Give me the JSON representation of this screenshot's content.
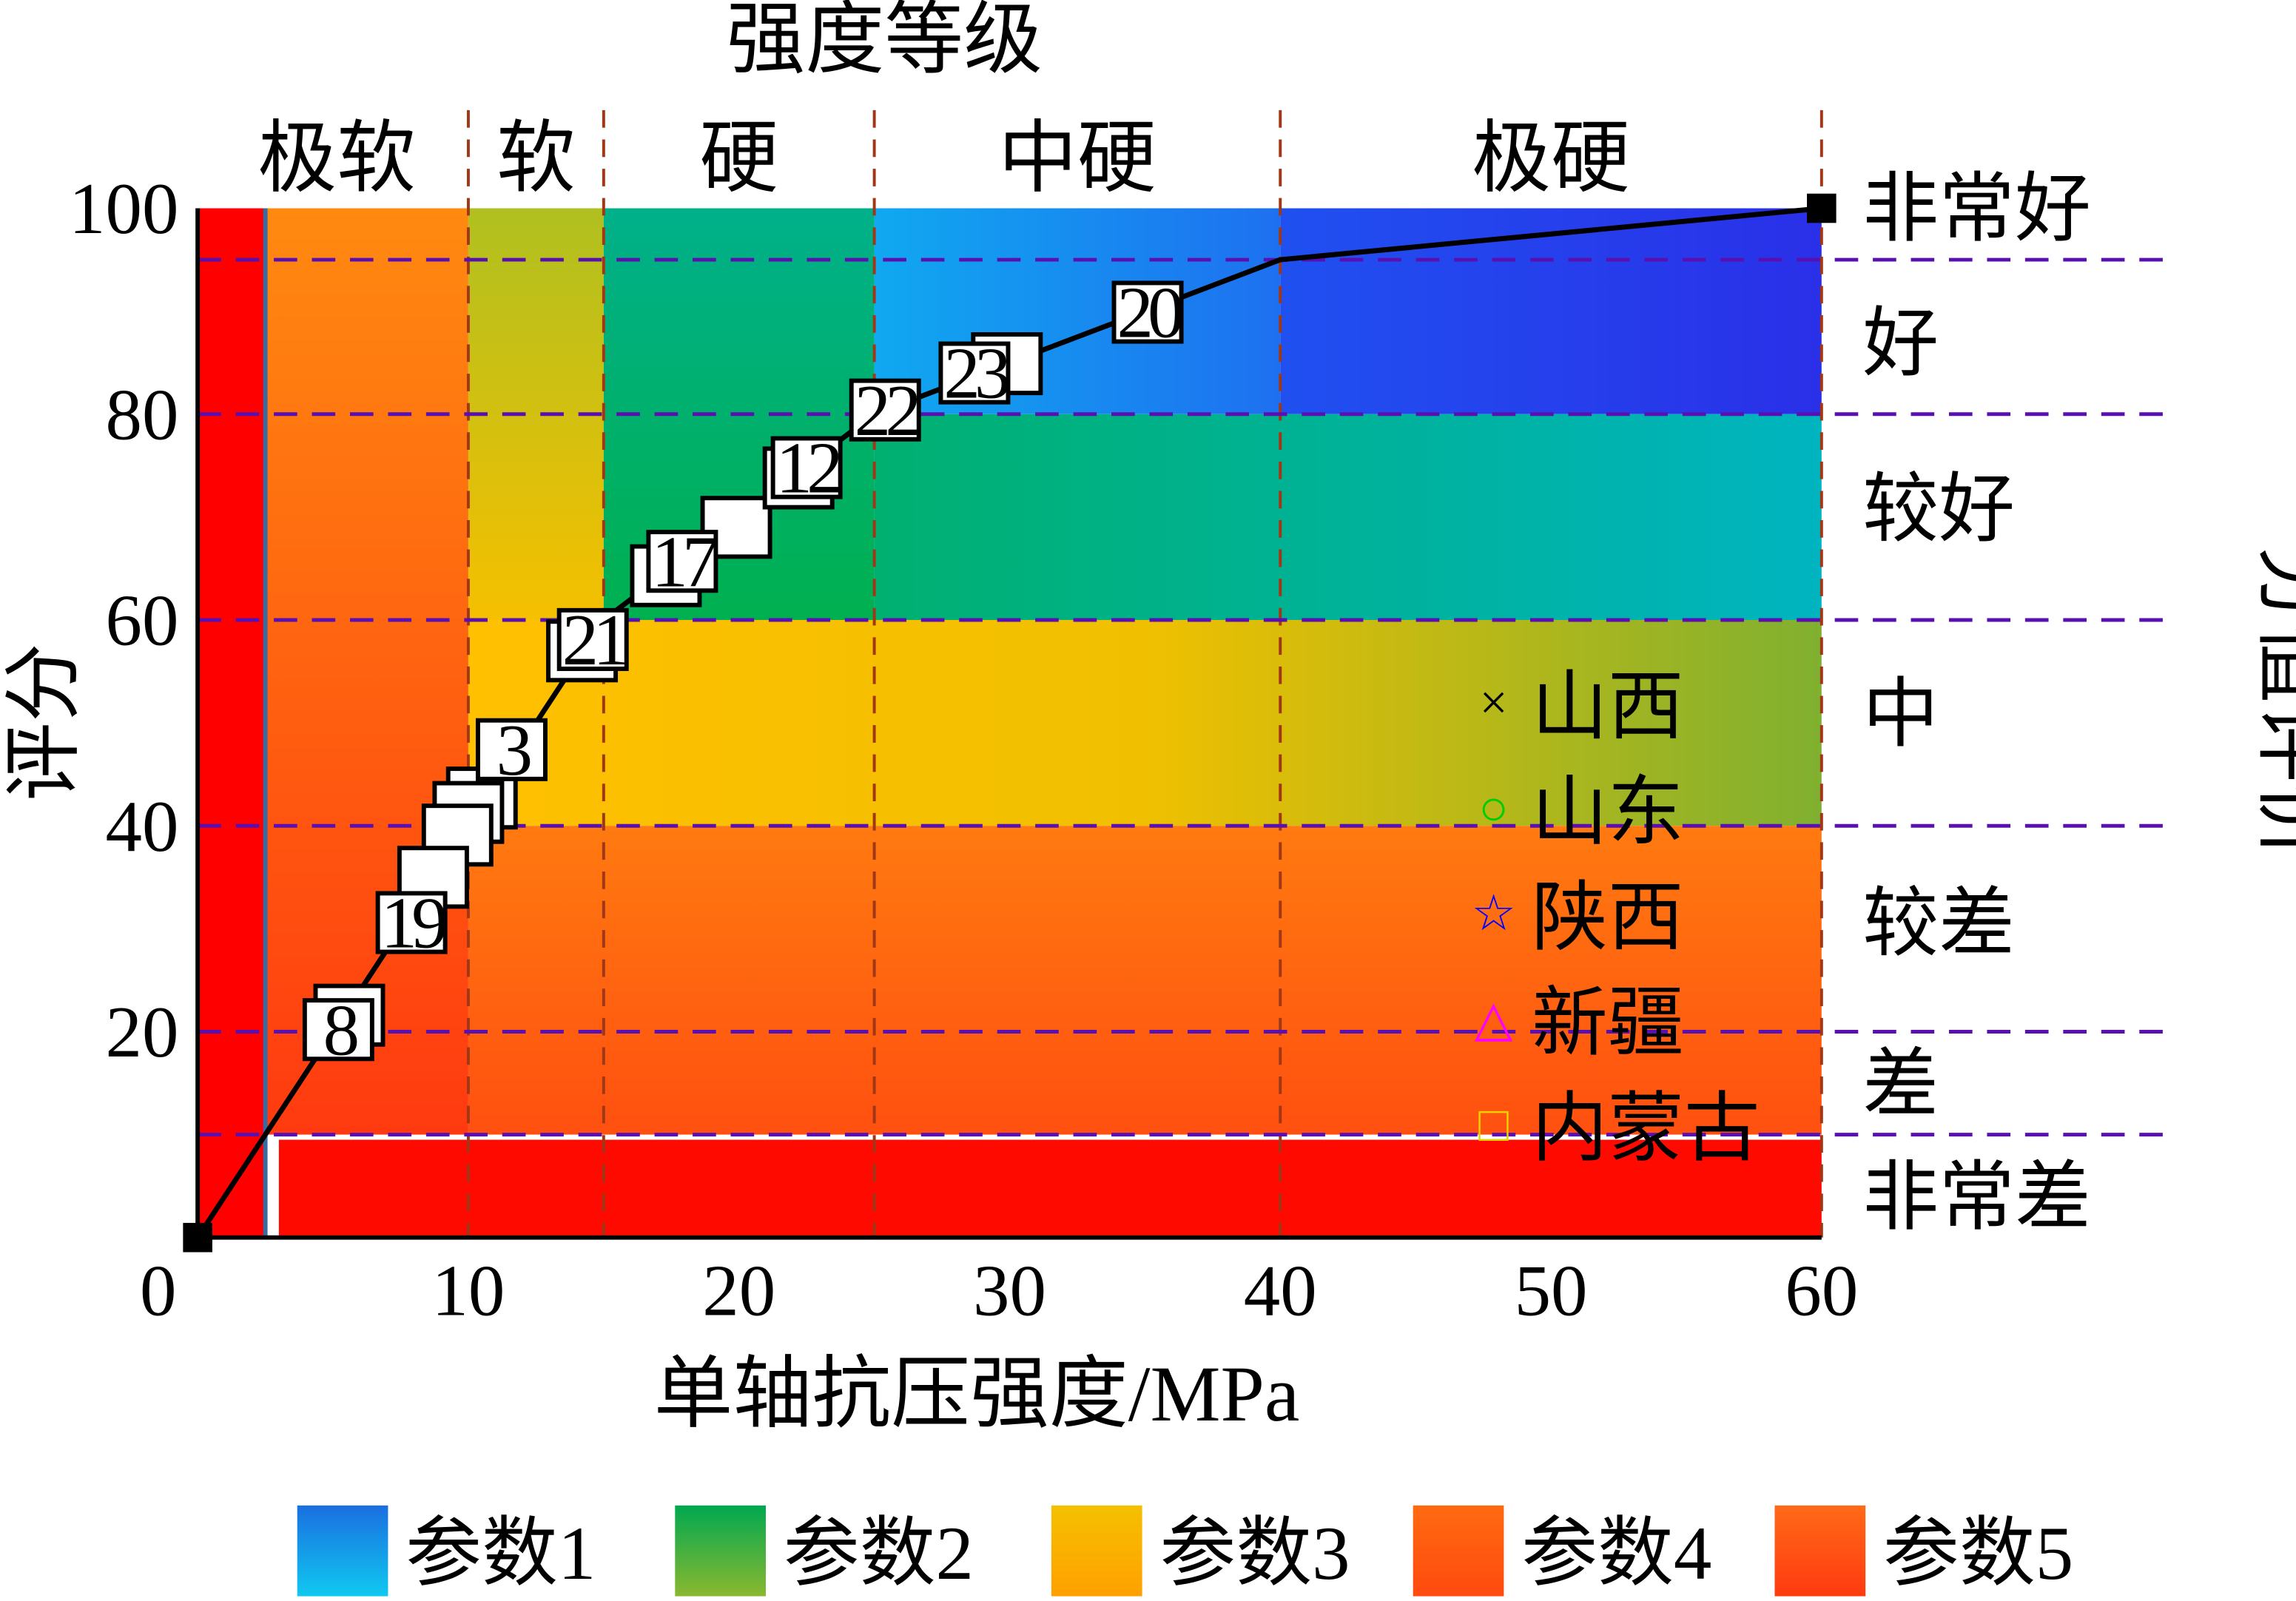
{
  "chart_data": {
    "type": "line",
    "title_top": "强度等级",
    "xlabel": "单轴抗压强度/MPa",
    "ylabel": "评分",
    "ylabel_right": "分值评价",
    "xlim": [
      0,
      60
    ],
    "ylim": [
      0,
      100
    ],
    "xticks": [
      0,
      10,
      20,
      30,
      40,
      50,
      60
    ],
    "yticks": [
      20,
      40,
      60,
      80,
      100
    ],
    "strength_classes": [
      {
        "label": "极软",
        "from": 0,
        "to": 10
      },
      {
        "label": "软",
        "from": 10,
        "to": 15
      },
      {
        "label": "硬",
        "from": 15,
        "to": 25
      },
      {
        "label": "中硬",
        "from": 25,
        "to": 40
      },
      {
        "label": "极硬",
        "from": 40,
        "to": 60
      }
    ],
    "grade_bands": [
      {
        "label": "非常好",
        "at": 100
      },
      {
        "label": "好",
        "from": 80,
        "to": 95
      },
      {
        "label": "较好",
        "from": 60,
        "to": 80
      },
      {
        "label": "中",
        "from": 40,
        "to": 60
      },
      {
        "label": "较差",
        "from": 20,
        "to": 40
      },
      {
        "label": "差",
        "from": 10,
        "to": 20
      },
      {
        "label": "非常差",
        "from": 0,
        "to": 10
      }
    ],
    "h_dividers": [
      95,
      80,
      60,
      40,
      20,
      10
    ],
    "v_dividers": [
      10,
      15,
      25,
      40,
      60
    ],
    "score_curve": {
      "x": [
        0,
        15,
        25,
        40,
        60
      ],
      "y": [
        0,
        60,
        80,
        95,
        100
      ]
    },
    "samples": [
      {
        "label": "",
        "x": 5.6,
        "y": 21.6
      },
      {
        "label": "8",
        "x": 5.2,
        "y": 20.2
      },
      {
        "label": "",
        "x": 10.5,
        "y": 42.7
      },
      {
        "label": "",
        "x": 10.0,
        "y": 41.3
      },
      {
        "label": "",
        "x": 9.6,
        "y": 39.1
      },
      {
        "label": "",
        "x": 8.7,
        "y": 35.0
      },
      {
        "label": "19",
        "x": 7.9,
        "y": 30.6
      },
      {
        "label": "3",
        "x": 11.6,
        "y": 47.4
      },
      {
        "label": "",
        "x": 14.2,
        "y": 57.0
      },
      {
        "label": "21",
        "x": 14.6,
        "y": 58.1
      },
      {
        "label": "",
        "x": 19.9,
        "y": 69.0
      },
      {
        "label": "",
        "x": 17.3,
        "y": 64.3
      },
      {
        "label": "17",
        "x": 17.9,
        "y": 65.7
      },
      {
        "label": "",
        "x": 22.2,
        "y": 73.8
      },
      {
        "label": "12",
        "x": 22.5,
        "y": 74.8
      },
      {
        "label": "22",
        "x": 25.4,
        "y": 80.4
      },
      {
        "label": "",
        "x": 29.9,
        "y": 84.9
      },
      {
        "label": "23",
        "x": 28.7,
        "y": 84.0
      },
      {
        "label": "20",
        "x": 35.1,
        "y": 89.9
      }
    ],
    "legend_regions": [
      {
        "label": "山西",
        "symbol": "×",
        "color": "#000000"
      },
      {
        "label": "山东",
        "symbol": "○",
        "color": "#00cc00"
      },
      {
        "label": "陕西",
        "symbol": "☆",
        "color": "#0000ff"
      },
      {
        "label": "新疆",
        "symbol": "△",
        "color": "#ff00ff"
      },
      {
        "label": "内蒙古",
        "symbol": "□",
        "color": "#e6d000"
      }
    ],
    "legend_params": [
      {
        "label": "参数1",
        "c1": "#1a6fe0",
        "c2": "#10c8f0"
      },
      {
        "label": "参数2",
        "c1": "#00a850",
        "c2": "#8ab830"
      },
      {
        "label": "参数3",
        "c1": "#f5c000",
        "c2": "#ffa000"
      },
      {
        "label": "参数4",
        "c1": "#ff6a10",
        "c2": "#ff4a10"
      },
      {
        "label": "参数5",
        "c1": "#ff6a18",
        "c2": "#ff3a10"
      }
    ]
  }
}
